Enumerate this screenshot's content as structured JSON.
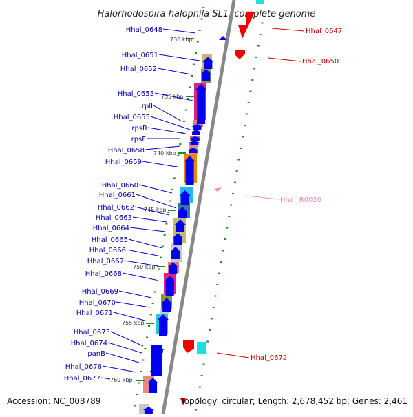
{
  "title": "Halorhodospira halophila SL1, complete genome",
  "footer": {
    "accession": "Accession: NC_008789",
    "topology": "Topology: circular; Length: 2,678,452 bp; Genes: 2,461"
  },
  "colors": {
    "left_label": "#0000aa",
    "right_label": "#cc0000",
    "rna_label": "#ee88bb",
    "axis": "#888888",
    "tick": "#228822"
  },
  "kbp_marks": [
    "730 kbp",
    "735 kbp",
    "740 kbp",
    "745 kbp",
    "750 kbp",
    "755 kbp",
    "760 kbp"
  ],
  "genes_left": [
    "Hhal_0648",
    "Hhal_0651",
    "Hhal_0652",
    "Hhal_0653",
    "rplI",
    "Hhal_0655",
    "rpsR",
    "rpsF",
    "Hhal_0658",
    "Hhal_0659",
    "Hhal_0660",
    "Hhal_0661",
    "Hhal_0662",
    "Hhal_0663",
    "Hhal_0664",
    "Hhal_0665",
    "Hhal_0666",
    "Hhal_0667",
    "Hhal_0668",
    "Hhal_0669",
    "Hhal_0670",
    "Hhal_0671",
    "Hhal_0673",
    "Hhal_0674",
    "panB",
    "Hhal_0676",
    "Hhal_0677"
  ],
  "genes_right": [
    "Hhal_0647",
    "Hhal_0650",
    "Hhal_R0020",
    "Hhal_0672"
  ]
}
